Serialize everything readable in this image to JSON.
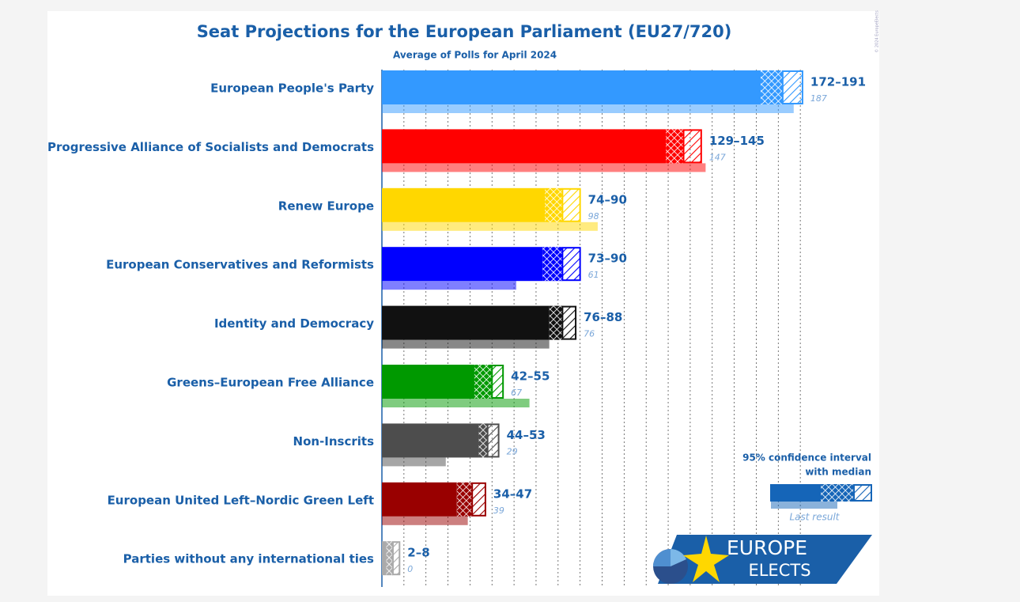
{
  "chart_data": {
    "type": "range_bar",
    "title": "Seat Projections for the European Parliament (EU27/720)",
    "subtitle": "Average of Polls for April 2024",
    "copyright": "© 2024 EuropeElects",
    "categories": [
      "European People's Party",
      "Progressive Alliance of Socialists and Democrats",
      "Renew Europe",
      "European Conservatives and Reformists",
      "Identity and Democracy",
      "Greens–European Free Alliance",
      "Non-Inscrits",
      "European United Left–Nordic Green Left",
      "Parties without any international ties"
    ],
    "low": [
      172,
      129,
      74,
      73,
      76,
      42,
      44,
      34,
      2
    ],
    "median": [
      182,
      137,
      82,
      82,
      82,
      50,
      48,
      41,
      5
    ],
    "high": [
      191,
      145,
      90,
      90,
      88,
      55,
      53,
      47,
      8
    ],
    "range_labels": [
      "172–191",
      "129–145",
      "74–90",
      "73–90",
      "76–88",
      "42–55",
      "44–53",
      "34–47",
      "2–8"
    ],
    "last": [
      187,
      147,
      98,
      61,
      76,
      67,
      29,
      39,
      0
    ],
    "colors": [
      "#3399ff",
      "#ff0000",
      "#ffd700",
      "#0000ff",
      "#111111",
      "#009900",
      "#4d4d4d",
      "#990000",
      "#aaaaaa"
    ],
    "xlim": [
      0,
      200
    ],
    "xticks": [
      0,
      10,
      20,
      30,
      40,
      50,
      60,
      70,
      80,
      90,
      100,
      110,
      120,
      130,
      140,
      150,
      160,
      170,
      180,
      190
    ],
    "grid": true,
    "legend": {
      "lines": [
        "95% confidence interval",
        "with median"
      ],
      "last": "Last result",
      "color": "#1565b8"
    },
    "logo": {
      "top": "EUROPE",
      "bottom": "ELECTS"
    }
  }
}
